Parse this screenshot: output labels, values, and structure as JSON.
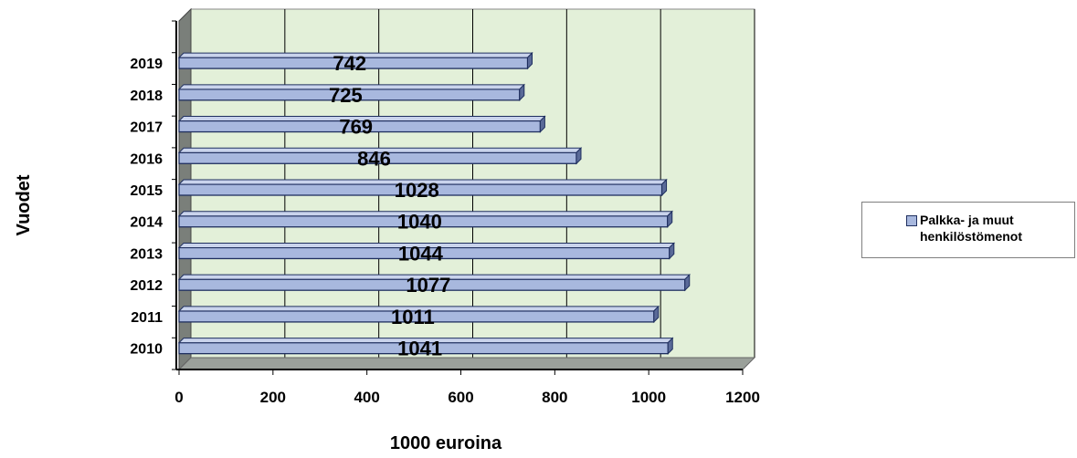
{
  "chart_data": {
    "type": "bar",
    "orientation": "horizontal",
    "categories": [
      "2010",
      "2011",
      "2012",
      "2013",
      "2014",
      "2015",
      "2016",
      "2017",
      "2018",
      "2019"
    ],
    "series": [
      {
        "name": "Palkka- ja muut henkilöstömenot",
        "values": [
          1041,
          1011,
          1077,
          1044,
          1040,
          1028,
          846,
          769,
          725,
          742
        ]
      }
    ],
    "data_labels": [
      "1041",
      "1011",
      "1077",
      "1044",
      "1040",
      "1028",
      "846",
      "769",
      "725",
      "742"
    ],
    "xlabel": "1000 euroina",
    "ylabel": "Vuodet",
    "xlim": [
      0,
      1200
    ],
    "x_ticks": [
      "0",
      "200",
      "400",
      "600",
      "800",
      "1000",
      "1200"
    ],
    "grid": true,
    "legend_position": "right",
    "style_3d": true,
    "colors": {
      "bar_fill": "#a8b8de",
      "bar_outline": "#1f2f5f",
      "plot_bg": "#e3f0d9",
      "floor": "#9aa09a",
      "wall": "#7a7f7a"
    }
  }
}
